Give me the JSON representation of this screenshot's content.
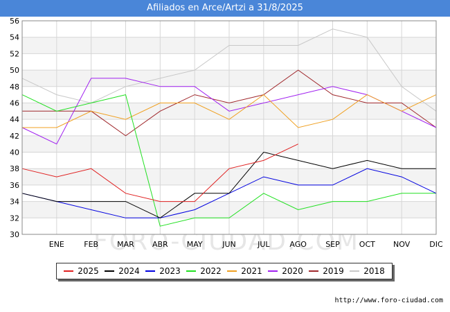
{
  "header": {
    "title": "Afiliados en Arce/Artzi a 31/8/2025"
  },
  "watermark": "FORO-CIUDAD.COM",
  "source": "http://www.foro-ciudad.com",
  "chart_data": {
    "type": "line",
    "title": "Afiliados en Arce/Artzi a 31/8/2025",
    "xlabel": "",
    "ylabel": "",
    "categories": [
      "",
      "ENE",
      "FEB",
      "MAR",
      "ABR",
      "MAY",
      "JUN",
      "JUL",
      "AGO",
      "SEP",
      "OCT",
      "NOV",
      "DIC"
    ],
    "ylim": [
      30,
      56
    ],
    "yticks": [
      30,
      32,
      34,
      36,
      38,
      40,
      42,
      44,
      46,
      48,
      50,
      52,
      54,
      56
    ],
    "grid": true,
    "legend_position": "bottom",
    "series": [
      {
        "name": "2018",
        "color": "#c8c8c8",
        "values": [
          49,
          47,
          46,
          48,
          49,
          50,
          53,
          53,
          53,
          55,
          54,
          48,
          45
        ]
      },
      {
        "name": "2019",
        "color": "#a0282c",
        "values": [
          45,
          45,
          45,
          42,
          45,
          47,
          46,
          47,
          50,
          47,
          46,
          46,
          43
        ]
      },
      {
        "name": "2020",
        "color": "#a020f0",
        "values": [
          43,
          41,
          49,
          49,
          48,
          48,
          45,
          46,
          47,
          48,
          47,
          45,
          43
        ]
      },
      {
        "name": "2021",
        "color": "#f0a020",
        "values": [
          43,
          43,
          45,
          44,
          46,
          46,
          44,
          47,
          43,
          44,
          47,
          45,
          47
        ]
      },
      {
        "name": "2022",
        "color": "#20e020",
        "values": [
          47,
          45,
          46,
          47,
          31,
          32,
          32,
          35,
          33,
          34,
          34,
          35,
          35
        ]
      },
      {
        "name": "2023",
        "color": "#0000e0",
        "values": [
          35,
          34,
          33,
          32,
          32,
          33,
          35,
          37,
          36,
          36,
          38,
          37,
          35
        ]
      },
      {
        "name": "2024",
        "color": "#000000",
        "values": [
          35,
          34,
          34,
          34,
          32,
          35,
          35,
          40,
          39,
          38,
          39,
          38,
          38
        ]
      },
      {
        "name": "2025",
        "color": "#e02020",
        "values": [
          38,
          37,
          38,
          35,
          34,
          34,
          38,
          39,
          41,
          null,
          null,
          null,
          null
        ]
      }
    ],
    "legend_order": [
      "2025",
      "2024",
      "2023",
      "2022",
      "2021",
      "2020",
      "2019",
      "2018"
    ]
  }
}
